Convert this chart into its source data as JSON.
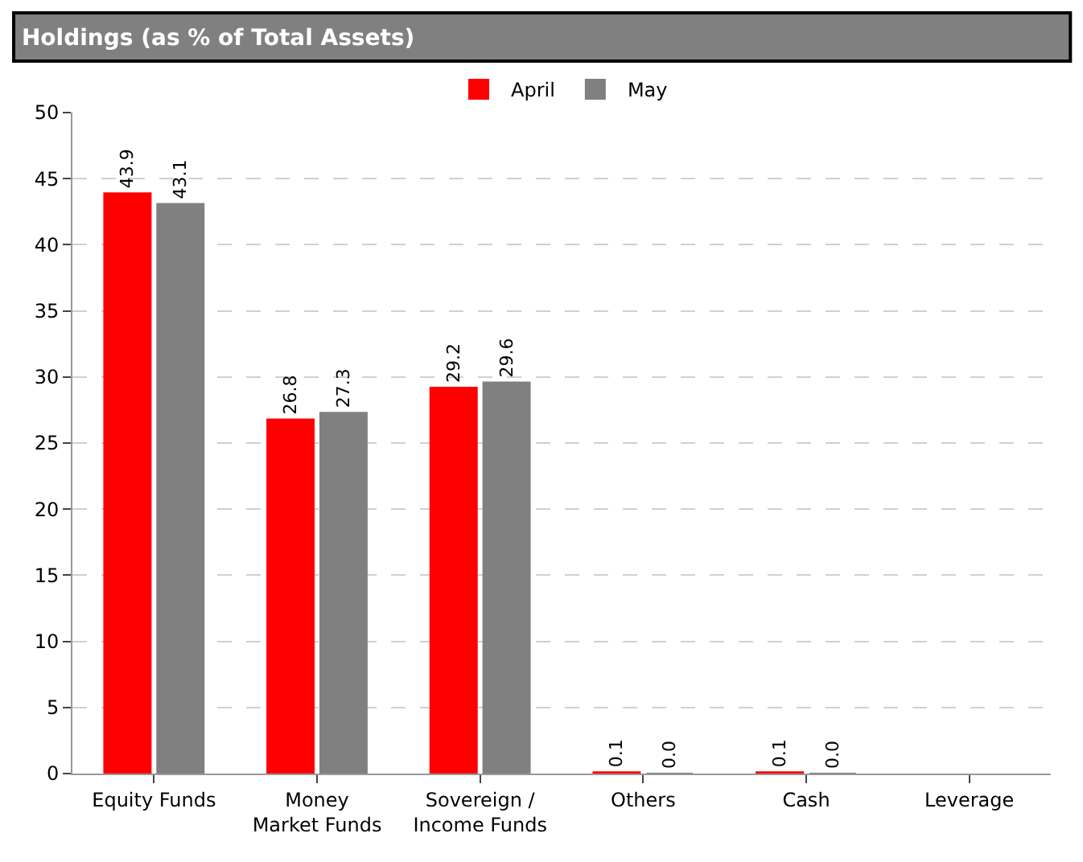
{
  "chart_data": {
    "type": "bar",
    "title": "Holdings (as % of Total Assets)",
    "categories": [
      "Equity Funds",
      "Money Market Funds",
      "Sovereign / Income Funds",
      "Others",
      "Cash",
      "Leverage"
    ],
    "series": [
      {
        "name": "April",
        "color": "#ff0000",
        "values": [
          43.9,
          26.8,
          29.2,
          0.1,
          0.1,
          null
        ],
        "value_labels": [
          "43.9",
          "26.8",
          "29.2",
          "0.1",
          "0.1",
          null
        ]
      },
      {
        "name": "May",
        "color": "#808080",
        "values": [
          43.1,
          27.3,
          29.6,
          0.0,
          0.0,
          null
        ],
        "value_labels": [
          "43.1",
          "27.3",
          "29.6",
          "0.0",
          "0.0",
          null
        ]
      }
    ],
    "ylim": [
      0,
      50
    ],
    "yticks": [
      0,
      5,
      10,
      15,
      20,
      25,
      30,
      35,
      40,
      45,
      50
    ],
    "grid": "y",
    "legend": "top"
  }
}
